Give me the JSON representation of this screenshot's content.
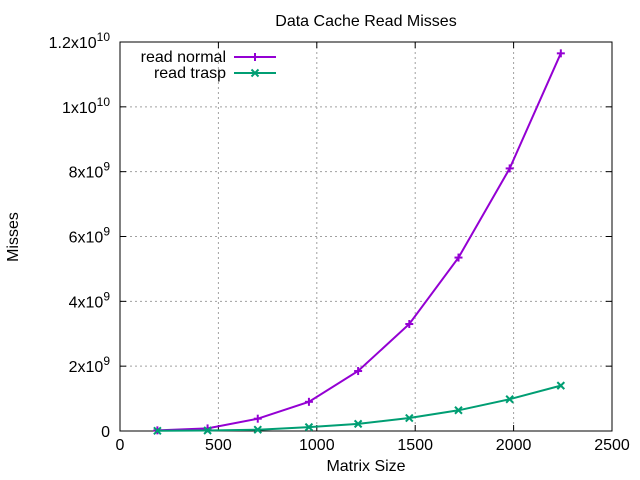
{
  "chart_data": {
    "type": "line",
    "title": "Data Cache Read Misses",
    "xlabel": "Matrix Size",
    "ylabel": "Misses",
    "xlim": [
      0,
      2500
    ],
    "ylim": [
      0,
      12000000000
    ],
    "x_ticks": [
      {
        "value": 0,
        "label": "0"
      },
      {
        "value": 500,
        "label": "500"
      },
      {
        "value": 1000,
        "label": "1000"
      },
      {
        "value": 1500,
        "label": "1500"
      },
      {
        "value": 2000,
        "label": "2000"
      },
      {
        "value": 2500,
        "label": "2500"
      }
    ],
    "y_ticks": [
      {
        "value": 0,
        "label": "0",
        "mantissa": "",
        "exponent": ""
      },
      {
        "value": 2000000000,
        "label": "2x10^9",
        "mantissa": "2x10",
        "exponent": "9"
      },
      {
        "value": 4000000000,
        "label": "4x10^9",
        "mantissa": "4x10",
        "exponent": "9"
      },
      {
        "value": 6000000000,
        "label": "6x10^9",
        "mantissa": "6x10",
        "exponent": "9"
      },
      {
        "value": 8000000000,
        "label": "8x10^9",
        "mantissa": "8x10",
        "exponent": "9"
      },
      {
        "value": 10000000000,
        "label": "1x10^10",
        "mantissa": "1x10",
        "exponent": "10"
      },
      {
        "value": 12000000000,
        "label": "1.2x10^10",
        "mantissa": "1.2x10",
        "exponent": "10"
      }
    ],
    "grid": true,
    "legend_position": "top-left",
    "series": [
      {
        "name": "read normal",
        "color": "#9400d3",
        "marker": "plus",
        "x": [
          190,
          445,
          700,
          960,
          1210,
          1470,
          1720,
          1980,
          2240
        ],
        "y": [
          20000000,
          80000000,
          380000000,
          900000000,
          1850000000,
          3300000000,
          5350000000,
          8100000000,
          11650000000
        ]
      },
      {
        "name": "read trasp",
        "color": "#009e73",
        "marker": "x",
        "x": [
          190,
          445,
          700,
          960,
          1210,
          1470,
          1720,
          1980,
          2240
        ],
        "y": [
          5000000,
          15000000,
          40000000,
          120000000,
          220000000,
          400000000,
          640000000,
          980000000,
          1400000000
        ]
      }
    ]
  }
}
